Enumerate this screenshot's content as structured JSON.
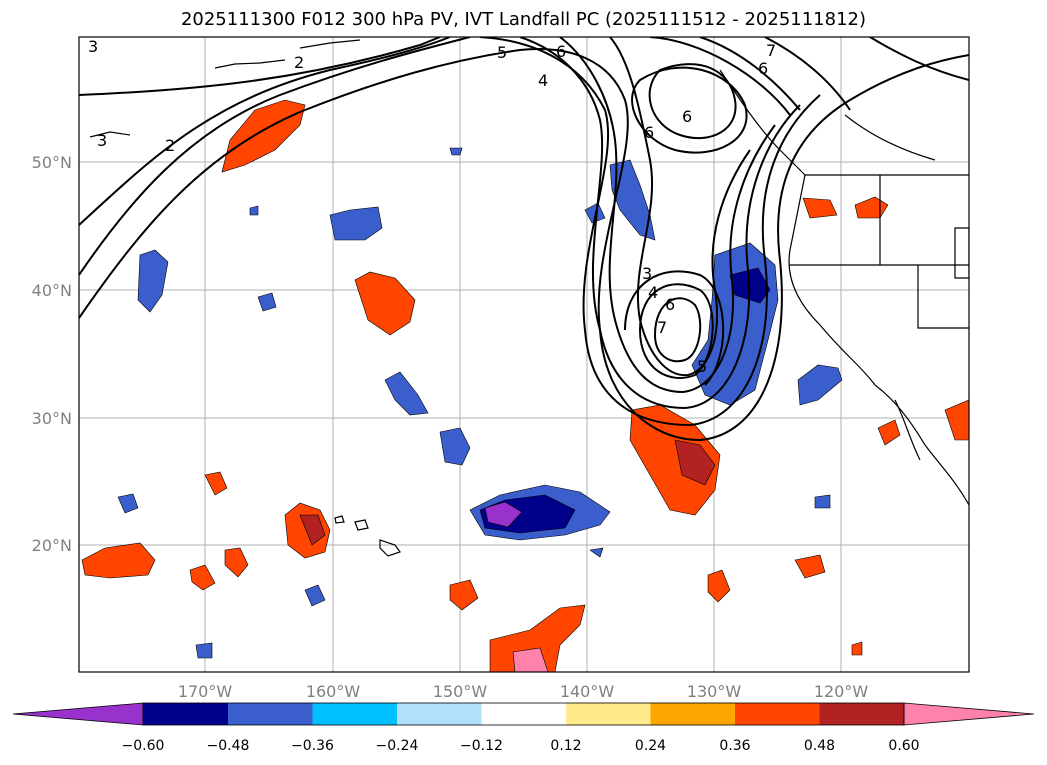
{
  "figure": {
    "title": "2025111300 F012 300 hPa PV, IVT Landfall PC (2025111512 - 2025111812)"
  },
  "map": {
    "lat_labels": [
      "50°N",
      "40°N",
      "30°N",
      "20°N"
    ],
    "lon_labels": [
      "170°W",
      "160°W",
      "150°W",
      "140°W",
      "130°W",
      "120°W"
    ],
    "contour_labels": [
      "3",
      "2",
      "3",
      "2",
      "5",
      "6",
      "4",
      "6",
      "7",
      "6",
      "6",
      "3",
      "4",
      "6",
      "7",
      "5"
    ]
  },
  "colorbar": {
    "colors": [
      "#9932cc",
      "#00008b",
      "#3a5fcd",
      "#00bfff",
      "#b0e0fa",
      "#ffffff",
      "#ffeb8c",
      "#ffa500",
      "#ff4500",
      "#b22222",
      "#ff82ab"
    ],
    "tick_labels": [
      "−0.60",
      "−0.48",
      "−0.36",
      "−0.24",
      "−0.12",
      "0.12",
      "0.24",
      "0.36",
      "0.48",
      "0.60"
    ]
  }
}
